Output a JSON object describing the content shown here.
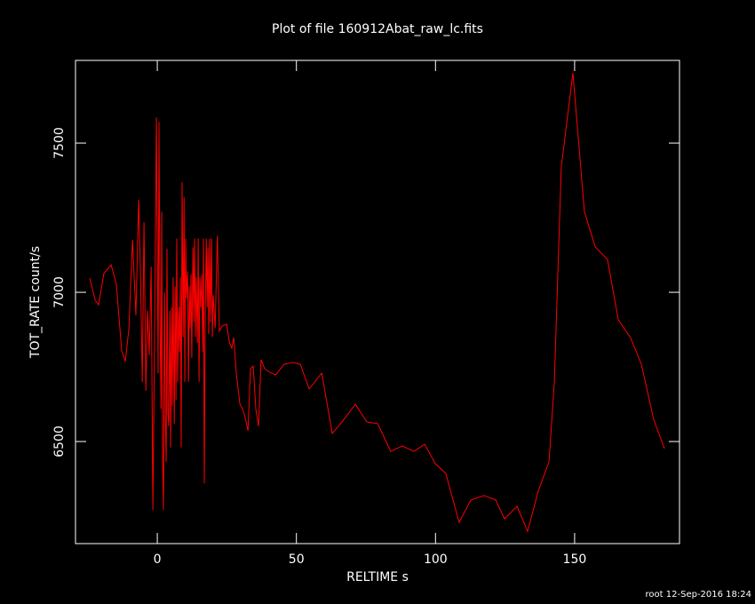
{
  "chart_data": {
    "type": "line",
    "title": "Plot of file 160912Abat_raw_lc.fits",
    "x_label": "RELTIME  s",
    "y_label": "TOT_RATE  count/s",
    "footer": "root 12-Sep-2016 18:24",
    "color": "#ff0000",
    "xlim": [
      -29.4,
      187.7
    ],
    "ylim": [
      6158,
      7777
    ],
    "xticks": [
      0,
      50,
      100,
      150
    ],
    "yticks": [
      6500,
      7000,
      7500
    ],
    "x": [
      -24.3,
      -22.3,
      -21.1,
      -19.2,
      -16.6,
      -14.7,
      -12.8,
      -11.5,
      -10.2,
      -8.9,
      -7.7,
      -6.7,
      -6.1,
      -5.4,
      -4.8,
      -4.1,
      -3.5,
      -2.9,
      -2.2,
      -1.6,
      -1.0,
      -0.3,
      0.3,
      0.6,
      1.0,
      1.3,
      1.6,
      1.9,
      2.2,
      2.6,
      2.9,
      3.2,
      3.5,
      3.8,
      4.1,
      4.5,
      4.8,
      5.1,
      5.4,
      5.7,
      6.1,
      6.4,
      6.7,
      7.0,
      7.3,
      7.7,
      8.0,
      8.3,
      8.6,
      8.9,
      9.3,
      9.6,
      9.9,
      10.2,
      10.5,
      10.9,
      11.2,
      11.5,
      11.8,
      12.1,
      12.4,
      12.8,
      13.1,
      13.4,
      13.7,
      14.0,
      14.4,
      14.7,
      15.0,
      15.3,
      15.6,
      16.0,
      16.3,
      16.6,
      16.9,
      17.2,
      17.6,
      17.9,
      18.2,
      18.5,
      18.8,
      19.1,
      19.5,
      19.8,
      20.1,
      20.8,
      21.6,
      22.3,
      23.3,
      24.9,
      25.9,
      26.8,
      27.5,
      28.4,
      29.7,
      30.6,
      31.6,
      32.6,
      33.5,
      34.5,
      35.4,
      36.4,
      37.3,
      38.6,
      39.9,
      42.5,
      45.6,
      48.8,
      51.4,
      54.6,
      59.1,
      62.9,
      66.4,
      71.2,
      75.3,
      79.2,
      83.9,
      88.1,
      92.2,
      96.1,
      99.9,
      103.7,
      108.5,
      112.7,
      117.5,
      121.6,
      124.8,
      129.3,
      133.1,
      136.9,
      140.8,
      142.7,
      145.2,
      149.4,
      153.5,
      157.4,
      161.8,
      165.7,
      170.1,
      174.0,
      178.4,
      182.3
    ],
    "values": [
      7048,
      6973,
      6958,
      7063,
      7092,
      7027,
      6804,
      6768,
      6878,
      7176,
      6923,
      7310,
      7086,
      6699,
      7235,
      6670,
      6938,
      6789,
      7086,
      6271,
      6848,
      7586,
      6729,
      7571,
      6900,
      6610,
      7270,
      6450,
      6271,
      7000,
      6560,
      6432,
      7146,
      6600,
      6551,
      6938,
      6480,
      6950,
      6620,
      7050,
      6560,
      7020,
      6640,
      7180,
      6700,
      6950,
      6800,
      7050,
      6480,
      7369,
      6850,
      7320,
      6700,
      7180,
      6980,
      7070,
      6700,
      7020,
      6880,
      7060,
      6780,
      7150,
      6900,
      7180,
      6850,
      7050,
      6830,
      7180,
      6700,
      7050,
      6950,
      7060,
      6800,
      7180,
      6360,
      6900,
      7180,
      6950,
      7150,
      6860,
      7180,
      6900,
      7180,
      6850,
      6990,
      6880,
      7190,
      6870,
      6887,
      6893,
      6833,
      6813,
      6848,
      6729,
      6625,
      6610,
      6580,
      6536,
      6744,
      6753,
      6610,
      6551,
      6774,
      6744,
      6735,
      6723,
      6759,
      6765,
      6759,
      6676,
      6729,
      6527,
      6566,
      6625,
      6566,
      6560,
      6467,
      6485,
      6467,
      6491,
      6426,
      6393,
      6229,
      6304,
      6319,
      6304,
      6241,
      6283,
      6199,
      6333,
      6432,
      6699,
      7420,
      7735,
      7271,
      7152,
      7110,
      6908,
      6848,
      6759,
      6574,
      6476
    ]
  }
}
